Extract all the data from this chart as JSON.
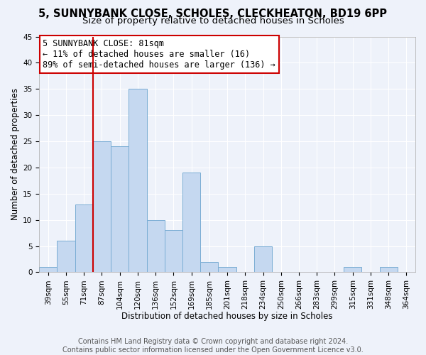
{
  "title": "5, SUNNYBANK CLOSE, SCHOLES, CLECKHEATON, BD19 6PP",
  "subtitle": "Size of property relative to detached houses in Scholes",
  "xlabel": "Distribution of detached houses by size in Scholes",
  "ylabel": "Number of detached properties",
  "bar_labels": [
    "39sqm",
    "55sqm",
    "71sqm",
    "87sqm",
    "104sqm",
    "120sqm",
    "136sqm",
    "152sqm",
    "169sqm",
    "185sqm",
    "201sqm",
    "218sqm",
    "234sqm",
    "250sqm",
    "266sqm",
    "283sqm",
    "299sqm",
    "315sqm",
    "331sqm",
    "348sqm",
    "364sqm"
  ],
  "bar_values": [
    1,
    6,
    13,
    25,
    24,
    35,
    10,
    8,
    19,
    2,
    1,
    0,
    5,
    0,
    0,
    0,
    0,
    1,
    0,
    1,
    0
  ],
  "bar_color": "#c5d8f0",
  "bar_edge_color": "#7aadd4",
  "vline_x": 2.5,
  "vline_color": "#cc0000",
  "annotation_text": "5 SUNNYBANK CLOSE: 81sqm\n← 11% of detached houses are smaller (16)\n89% of semi-detached houses are larger (136) →",
  "ylim": [
    0,
    45
  ],
  "yticks": [
    0,
    5,
    10,
    15,
    20,
    25,
    30,
    35,
    40,
    45
  ],
  "footer_text": "Contains HM Land Registry data © Crown copyright and database right 2024.\nContains public sector information licensed under the Open Government Licence v3.0.",
  "background_color": "#eef2fa",
  "grid_color": "#ffffff",
  "title_fontsize": 10.5,
  "subtitle_fontsize": 9.5,
  "axis_label_fontsize": 8.5,
  "tick_fontsize": 7.5,
  "annotation_fontsize": 8.5,
  "footer_fontsize": 7
}
